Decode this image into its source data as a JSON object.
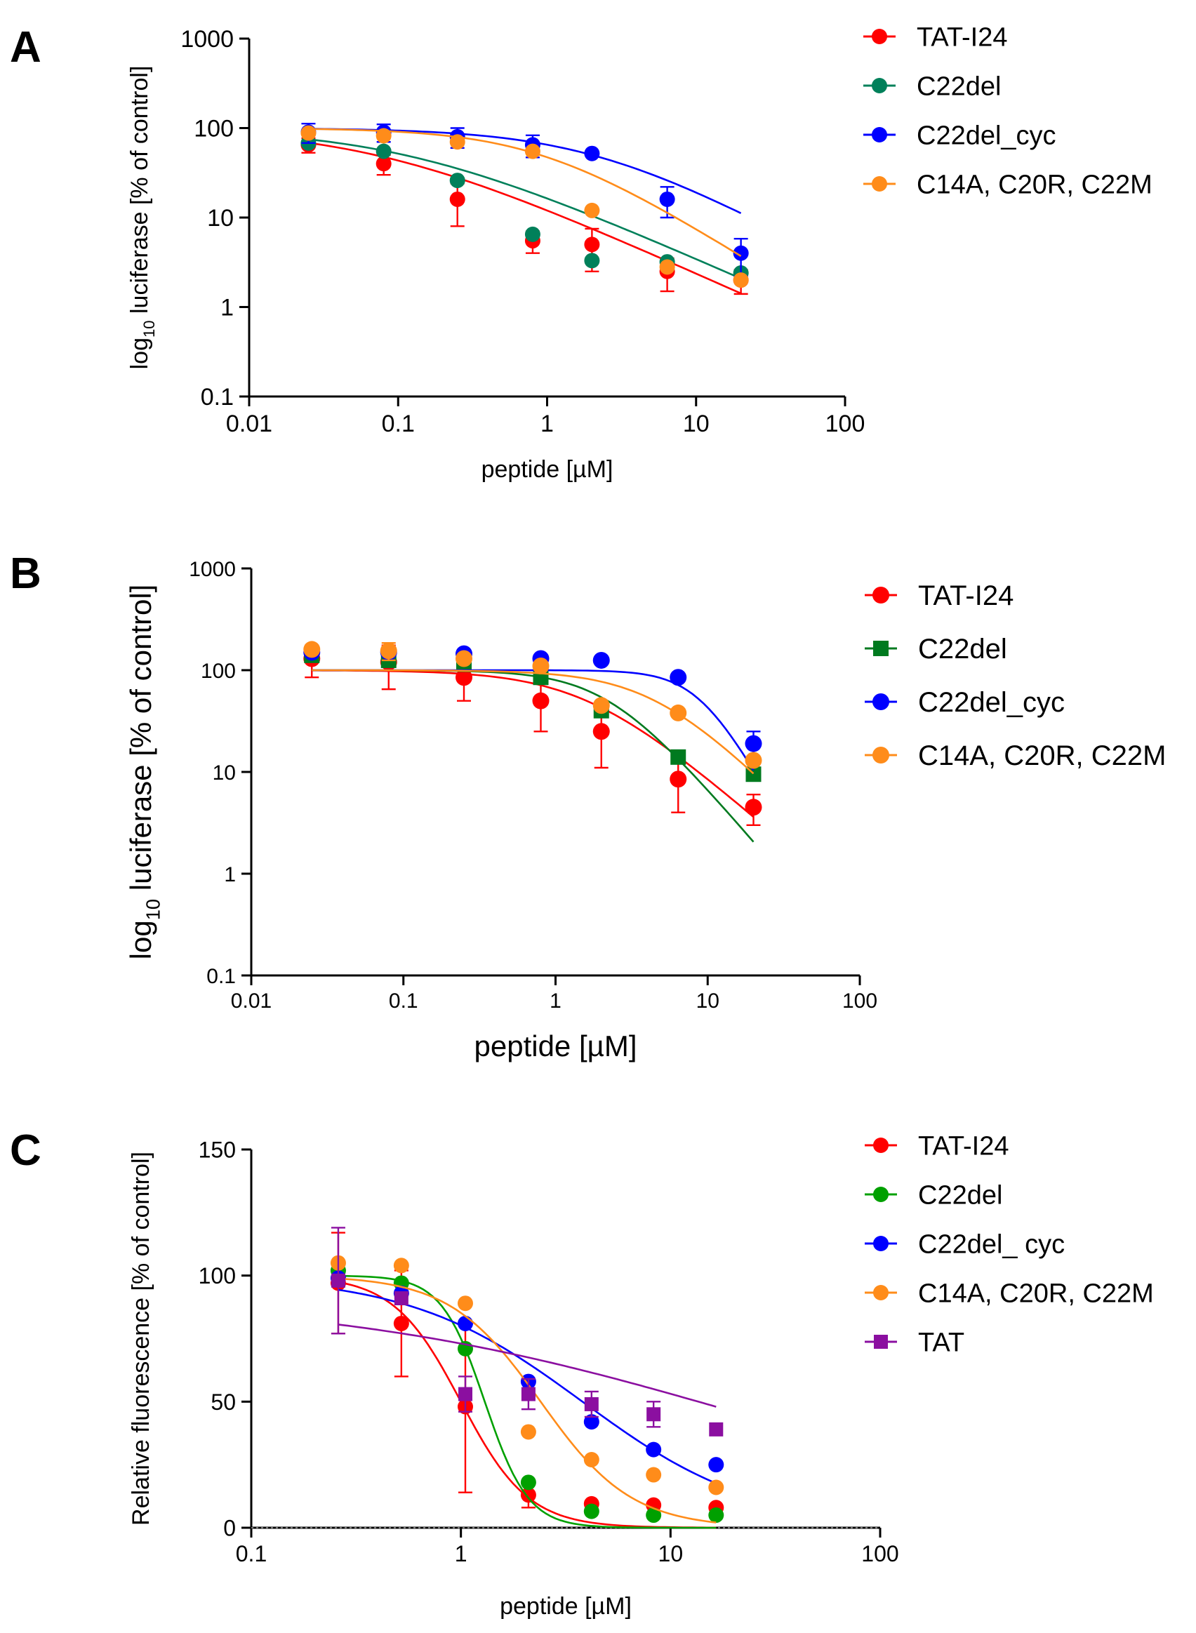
{
  "chart_data": [
    {
      "panel": "A",
      "type": "scatter",
      "xscale": "log",
      "yscale": "log",
      "xlabel": "peptide [µM]",
      "ylabel": "log10 luciferase [% of control]",
      "ylabel_parts": [
        "log",
        "10",
        " luciferase [% of control]"
      ],
      "xlim": [
        0.01,
        100
      ],
      "ylim": [
        0.1,
        1000
      ],
      "xticks": [
        0.01,
        0.1,
        1,
        10,
        100
      ],
      "xtick_labels": [
        "0.01",
        "0.1",
        "1",
        "10",
        "100"
      ],
      "yticks": [
        0.1,
        1,
        10,
        100,
        1000
      ],
      "ytick_labels": [
        "0.1",
        "1",
        "10",
        "100",
        "1000"
      ],
      "legend_position": "right",
      "series": [
        {
          "name": "TAT-I24",
          "color": "#ff0000",
          "marker": "circle",
          "x": [
            0.025,
            0.08,
            0.25,
            0.8,
            2,
            6.4,
            20
          ],
          "y": [
            65,
            40,
            16,
            5.5,
            5,
            2.5,
            2
          ],
          "err": [
            12,
            10,
            8,
            1.5,
            2.5,
            1.0,
            0.6
          ],
          "fit": {
            "top": 100,
            "bottom": 0,
            "ec50": 0.07,
            "hill": 0.75
          }
        },
        {
          "name": "C22del",
          "color": "#00805a",
          "marker": "circle",
          "x": [
            0.025,
            0.08,
            0.25,
            0.8,
            2,
            6.4,
            20
          ],
          "y": [
            68,
            55,
            26,
            6.5,
            3.3,
            3.2,
            2.4
          ],
          "err": [
            0,
            0,
            0,
            0,
            0,
            0,
            0
          ],
          "fit": {
            "top": 100,
            "bottom": 0,
            "ec50": 0.11,
            "hill": 0.74
          }
        },
        {
          "name": "C22del_cyc",
          "color": "#0000ff",
          "marker": "circle",
          "x": [
            0.025,
            0.08,
            0.25,
            0.8,
            2,
            6.4,
            20
          ],
          "y": [
            90,
            90,
            80,
            65,
            52,
            16,
            4
          ],
          "err": [
            22,
            20,
            20,
            18,
            0,
            6,
            1.8
          ],
          "fit": {
            "top": 100,
            "bottom": 0,
            "ec50": 2.0,
            "hill": 0.9
          }
        },
        {
          "name": "C14A, C20R, C22M",
          "color": "#ff8c1a",
          "marker": "circle",
          "x": [
            0.025,
            0.08,
            0.25,
            0.8,
            2,
            6.4,
            20
          ],
          "y": [
            88,
            82,
            70,
            55,
            12,
            2.8,
            2
          ],
          "err": [
            0,
            0,
            0,
            0,
            0,
            0,
            0
          ],
          "fit": {
            "top": 100,
            "bottom": 0,
            "ec50": 0.9,
            "hill": 1.05
          }
        }
      ]
    },
    {
      "panel": "B",
      "type": "scatter",
      "xscale": "log",
      "yscale": "log",
      "xlabel": "peptide [µM]",
      "ylabel": "log10 luciferase [% of control]",
      "ylabel_parts": [
        "log",
        "10",
        " luciferase [% of control]"
      ],
      "xlim": [
        0.01,
        100
      ],
      "ylim": [
        0.1,
        1000
      ],
      "xticks": [
        0.01,
        0.1,
        1,
        10,
        100
      ],
      "xtick_labels": [
        "0.01",
        "0.1",
        "1",
        "10",
        "100"
      ],
      "yticks": [
        0.1,
        1,
        10,
        100,
        1000
      ],
      "ytick_labels": [
        "0.1",
        "1",
        "10",
        "100",
        "1000"
      ],
      "legend_position": "right",
      "series": [
        {
          "name": "TAT-I24",
          "color": "#ff0000",
          "marker": "circle",
          "x": [
            0.025,
            0.08,
            0.25,
            0.8,
            2,
            6.4,
            20
          ],
          "y": [
            130,
            120,
            85,
            50,
            25,
            8.5,
            4.5
          ],
          "err": [
            45,
            55,
            35,
            25,
            14,
            4.5,
            1.5
          ],
          "fit": {
            "top": 100,
            "bottom": 0,
            "ec50": 1.6,
            "hill": 1.3
          }
        },
        {
          "name": "C22del",
          "color": "#007a1f",
          "marker": "square",
          "x": [
            0.025,
            0.08,
            0.25,
            0.8,
            2,
            6.4,
            20
          ],
          "y": [
            140,
            125,
            120,
            85,
            40,
            14,
            9.5
          ],
          "err": [
            0,
            0,
            0,
            0,
            0,
            0,
            0
          ],
          "fit": {
            "top": 100,
            "bottom": 0,
            "ec50": 2.2,
            "hill": 1.75
          }
        },
        {
          "name": "C22del_cyc",
          "color": "#0000ff",
          "marker": "circle",
          "x": [
            0.025,
            0.08,
            0.25,
            0.8,
            2,
            6.4,
            20
          ],
          "y": [
            150,
            150,
            145,
            130,
            125,
            85,
            19
          ],
          "err": [
            0,
            0,
            0,
            0,
            0,
            0,
            6
          ],
          "fit": {
            "top": 100,
            "bottom": 0,
            "ec50": 9.0,
            "hill": 2.7
          }
        },
        {
          "name": "C14A, C20R, C22M",
          "color": "#ff8c1a",
          "marker": "circle",
          "x": [
            0.025,
            0.08,
            0.25,
            0.8,
            2,
            6.4,
            20
          ],
          "y": [
            160,
            155,
            130,
            110,
            45,
            38,
            13
          ],
          "err": [
            0,
            30,
            0,
            0,
            0,
            0,
            0
          ],
          "fit": {
            "top": 100,
            "bottom": 0,
            "ec50": 4.5,
            "hill": 1.5
          }
        }
      ]
    },
    {
      "panel": "C",
      "type": "scatter",
      "xscale": "log",
      "yscale": "linear",
      "xlabel": "peptide [µM]",
      "ylabel": "Relative fluorescence [% of control]",
      "ylabel_parts": [
        "Relative fluorescence [% of control]"
      ],
      "xlim": [
        0.1,
        100
      ],
      "ylim": [
        0,
        150
      ],
      "xticks": [
        0.1,
        1,
        10,
        100
      ],
      "xtick_labels": [
        "0.1",
        "1",
        "10",
        "100"
      ],
      "yticks": [
        0,
        50,
        100,
        150
      ],
      "ytick_labels": [
        "0",
        "50",
        "100",
        "150"
      ],
      "legend_position": "right",
      "series": [
        {
          "name": "TAT-I24",
          "color": "#ff0000",
          "marker": "circle",
          "x": [
            0.26,
            0.52,
            1.05,
            2.1,
            4.2,
            8.3,
            16.5
          ],
          "y": [
            97,
            81,
            48,
            13,
            9.5,
            9,
            8
          ],
          "err": [
            20,
            21,
            34,
            5,
            0,
            0,
            0
          ],
          "fit": {
            "top": 100,
            "bottom": 0,
            "ec50": 1.0,
            "hill": 2.7
          }
        },
        {
          "name": "C22del",
          "color": "#00a000",
          "marker": "circle",
          "x": [
            0.26,
            0.52,
            1.05,
            2.1,
            4.2,
            8.3,
            16.5
          ],
          "y": [
            102,
            97,
            71,
            18,
            6.5,
            5,
            5
          ],
          "err": [
            0,
            0,
            0,
            0,
            0,
            0,
            0
          ],
          "fit": {
            "top": 100,
            "bottom": 0,
            "ec50": 1.3,
            "hill": 4.2
          }
        },
        {
          "name": "C22del_ cyc",
          "color": "#0000ff",
          "marker": "circle",
          "x": [
            0.26,
            0.52,
            1.05,
            2.1,
            4.2,
            8.3,
            16.5
          ],
          "y": [
            99,
            93,
            81,
            58,
            42,
            31,
            25
          ],
          "err": [
            0,
            0,
            0,
            0,
            0,
            0,
            0
          ],
          "fit": {
            "top": 100,
            "bottom": 0,
            "ec50": 3.8,
            "hill": 1.05
          }
        },
        {
          "name": "C14A, C20R, C22M",
          "color": "#ff8c1a",
          "marker": "circle",
          "x": [
            0.26,
            0.52,
            1.05,
            2.1,
            4.2,
            8.3,
            16.5
          ],
          "y": [
            105,
            104,
            89,
            38,
            27,
            21,
            16
          ],
          "err": [
            0,
            0,
            0,
            0,
            0,
            0,
            0
          ],
          "fit": {
            "top": 100,
            "bottom": 0,
            "ec50": 2.4,
            "hill": 2.0
          }
        },
        {
          "name": "TAT",
          "color": "#8b0fa0",
          "marker": "square",
          "x": [
            0.26,
            0.52,
            1.05,
            2.1,
            4.2,
            8.3,
            16.5
          ],
          "y": [
            98,
            91,
            53,
            53,
            49,
            45,
            39
          ],
          "err": [
            21,
            0,
            7,
            6,
            5,
            5,
            0
          ],
          "fit": {
            "top": 92,
            "bottom": 0,
            "ec50": 20,
            "hill": 0.45
          }
        }
      ]
    }
  ]
}
